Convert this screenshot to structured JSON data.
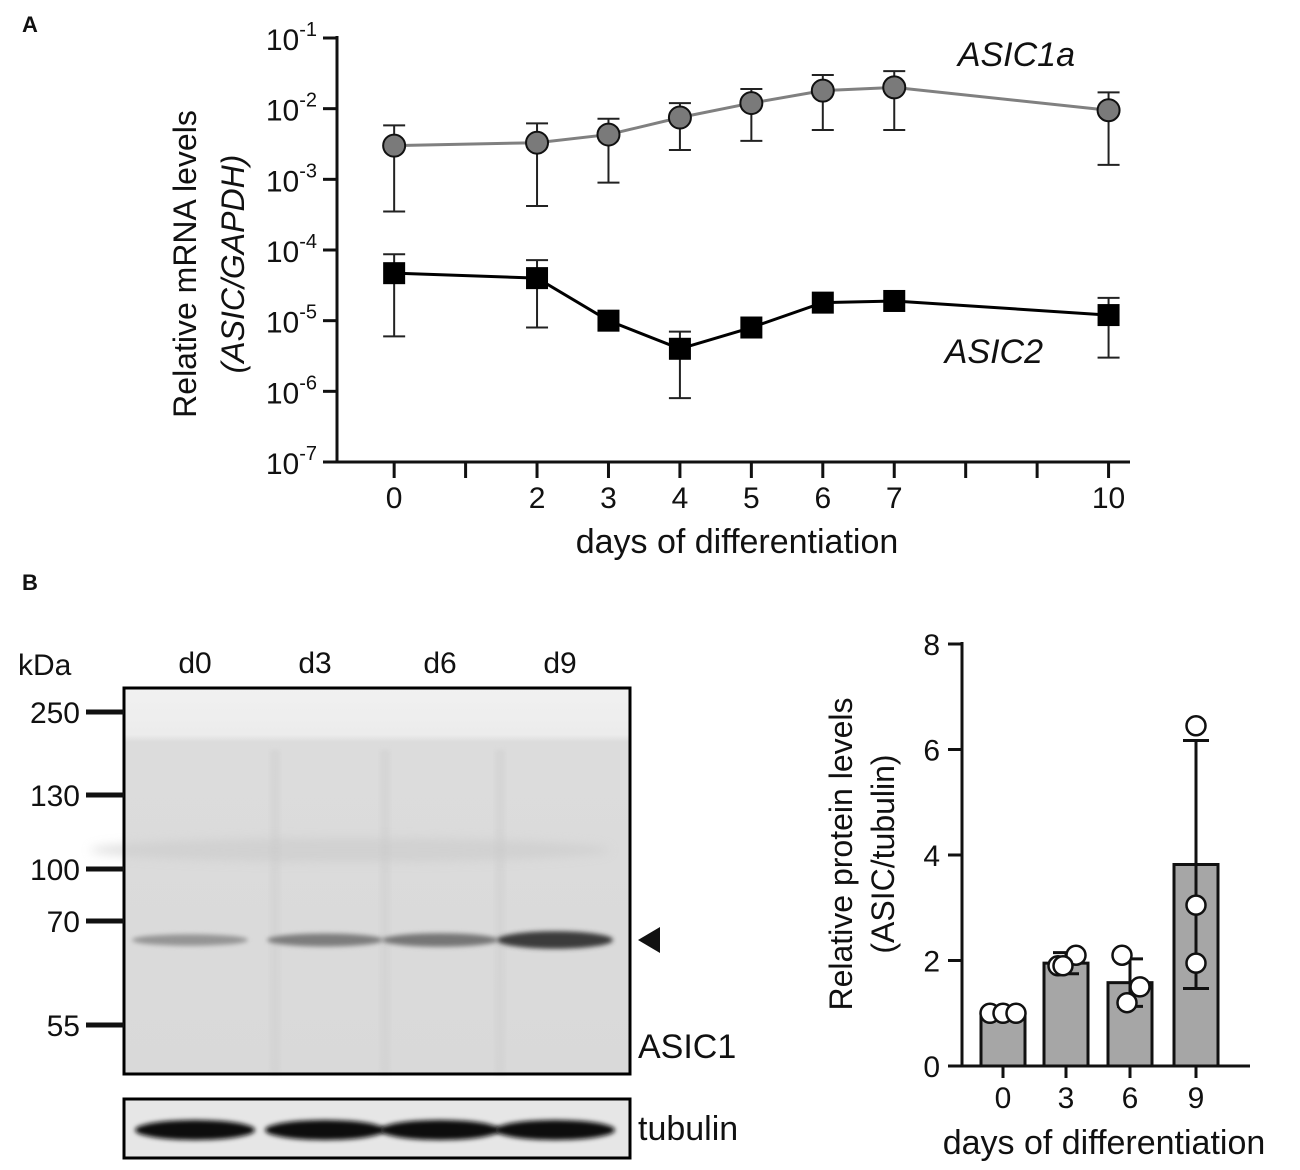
{
  "panels": {
    "a_letter": "A",
    "b_letter": "B"
  },
  "chart_data": [
    {
      "type": "line",
      "panel": "A",
      "ylabel_line1": "Relative mRNA levels",
      "ylabel_line2": "(ASIC/GAPDH)",
      "xlabel": "days of differentiation",
      "yscale": "log",
      "ylim": [
        1e-07,
        0.1
      ],
      "xlim": [
        -0.8,
        10.3
      ],
      "x_ticks": [
        0,
        2,
        3,
        4,
        5,
        6,
        7,
        10
      ],
      "x_minor_ticks": [
        1,
        8,
        9
      ],
      "y_ticks": [
        {
          "value": 0.1,
          "base": "10",
          "exp": "-1"
        },
        {
          "value": 0.01,
          "base": "10",
          "exp": "-2"
        },
        {
          "value": 0.001,
          "base": "10",
          "exp": "-3"
        },
        {
          "value": 0.0001,
          "base": "10",
          "exp": "-4"
        },
        {
          "value": 1e-05,
          "base": "10",
          "exp": "-5"
        },
        {
          "value": 1e-06,
          "base": "10",
          "exp": "-6"
        },
        {
          "value": 1e-07,
          "base": "10",
          "exp": "-7"
        }
      ],
      "series": [
        {
          "name": "ASIC1a",
          "color": "#7a7a7a",
          "line_color": "#808080",
          "marker": "circle",
          "x": [
            0,
            2,
            3,
            4,
            5,
            6,
            7,
            10
          ],
          "y": [
            0.003,
            0.0033,
            0.0043,
            0.0075,
            0.012,
            0.018,
            0.02,
            0.0095
          ],
          "err_low": [
            0.00035,
            0.00042,
            0.0009,
            0.0026,
            0.0035,
            0.005,
            0.005,
            0.0016
          ],
          "err_high": [
            0.0058,
            0.0062,
            0.0072,
            0.012,
            0.019,
            0.03,
            0.034,
            0.017
          ]
        },
        {
          "name": "ASIC2",
          "color": "#000000",
          "line_color": "#000000",
          "marker": "square",
          "x": [
            0,
            2,
            3,
            4,
            5,
            6,
            7,
            10
          ],
          "y": [
            4.7e-05,
            4e-05,
            1e-05,
            4e-06,
            8e-06,
            1.8e-05,
            1.9e-05,
            1.2e-05
          ],
          "err_low": [
            6e-06,
            8e-06,
            null,
            8e-07,
            null,
            null,
            null,
            3e-06
          ],
          "err_high": [
            8.7e-05,
            7.2e-05,
            null,
            7e-06,
            null,
            null,
            null,
            2.1e-05
          ]
        }
      ]
    },
    {
      "type": "bar",
      "panel": "B",
      "ylabel_line1": "Relative protein levels",
      "ylabel_line2": "(ASIC/tubulin)",
      "xlabel": "days of differentiation",
      "categories": [
        "0",
        "3",
        "6",
        "9"
      ],
      "values": [
        1.0,
        1.95,
        1.58,
        3.82
      ],
      "sd": [
        0.0,
        0.2,
        0.45,
        2.35
      ],
      "points": [
        [
          1.0,
          1.0,
          1.0
        ],
        [
          1.9,
          2.1,
          1.9
        ],
        [
          2.1,
          1.5,
          1.2
        ],
        [
          6.45,
          3.05,
          1.95
        ]
      ],
      "ylim": [
        0,
        8
      ],
      "y_ticks": [
        0,
        2,
        4,
        6,
        8
      ],
      "bar_color": "#a6a6a6"
    }
  ],
  "western_blot": {
    "kda_label": "kDa",
    "lanes": [
      "d0",
      "d3",
      "d6",
      "d9"
    ],
    "markers": [
      "250",
      "130",
      "100",
      "70",
      "55"
    ],
    "band_label": "ASIC1",
    "loading_label": "tubulin",
    "band_intensity": [
      0.35,
      0.5,
      0.55,
      0.95
    ]
  }
}
